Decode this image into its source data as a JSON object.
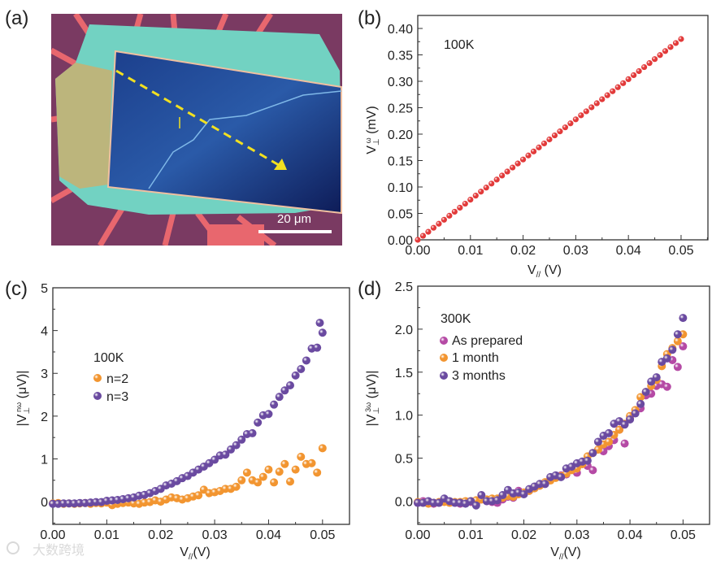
{
  "panel_labels": {
    "a": "(a)",
    "b": "(b)",
    "c": "(c)",
    "d": "(d)"
  },
  "image": {
    "scale_bar": "20 μm"
  },
  "watermark": "大数跨境",
  "colors": {
    "red": "#e23a3a",
    "orange": "#f29530",
    "purple": "#6a4aa0",
    "magenta": "#b54aa5"
  },
  "chart_data": [
    {
      "id": "b",
      "type": "scatter",
      "annotation": "100K",
      "xlabel": {
        "main": "V",
        "sub": "//",
        "unit": " (V)"
      },
      "ylabel": {
        "main": "V",
        "sub": "⊥",
        "sup": "ω",
        "unit": " (mV)"
      },
      "xlim": [
        0,
        0.0551
      ],
      "ylim": [
        0,
        0.4246
      ],
      "xticks": [
        "0.00",
        "0.01",
        "0.02",
        "0.03",
        "0.04",
        "0.05"
      ],
      "yticks": [
        "0.00",
        "0.05",
        "0.10",
        "0.15",
        "0.20",
        "0.25",
        "0.30",
        "0.35",
        "0.40"
      ],
      "xtick_step": 0.01,
      "ytick_step": 0.05,
      "series": [
        {
          "name": "100K",
          "color": "#e23a3a",
          "x": [
            0,
            0.001,
            0.002,
            0.003,
            0.004,
            0.005,
            0.006,
            0.007,
            0.008,
            0.009,
            0.01,
            0.011,
            0.012,
            0.013,
            0.014,
            0.015,
            0.016,
            0.017,
            0.018,
            0.019,
            0.02,
            0.021,
            0.022,
            0.023,
            0.024,
            0.025,
            0.026,
            0.027,
            0.028,
            0.029,
            0.03,
            0.031,
            0.032,
            0.033,
            0.034,
            0.035,
            0.036,
            0.037,
            0.038,
            0.039,
            0.04,
            0.041,
            0.042,
            0.043,
            0.044,
            0.045,
            0.046,
            0.047,
            0.048,
            0.049,
            0.05
          ],
          "y": [
            0,
            0.0076,
            0.0152,
            0.0228,
            0.0304,
            0.038,
            0.0456,
            0.0532,
            0.0608,
            0.0684,
            0.076,
            0.0836,
            0.0912,
            0.0988,
            0.1064,
            0.114,
            0.1216,
            0.1292,
            0.1368,
            0.1444,
            0.152,
            0.1596,
            0.1672,
            0.1748,
            0.1824,
            0.19,
            0.1976,
            0.2052,
            0.2128,
            0.2204,
            0.228,
            0.2356,
            0.2432,
            0.2508,
            0.2584,
            0.266,
            0.2736,
            0.2812,
            0.2888,
            0.2964,
            0.304,
            0.3116,
            0.3192,
            0.3268,
            0.3344,
            0.342,
            0.3496,
            0.3572,
            0.3648,
            0.3724,
            0.38
          ]
        }
      ]
    },
    {
      "id": "c",
      "type": "scatter",
      "legend_title": "100K",
      "legend_position": "middle-left",
      "xlabel": {
        "main": "V",
        "sub": "//",
        "unit": "(V)"
      },
      "ylabel": {
        "pre": "|V",
        "sub": "⊥",
        "sup": "nω",
        "unit": " (μV)|"
      },
      "xlim": [
        0,
        0.055
      ],
      "ylim": [
        -0.53,
        5
      ],
      "xticks": [
        "0.00",
        "0.01",
        "0.02",
        "0.03",
        "0.04",
        "0.05"
      ],
      "yticks": [
        "0",
        "1",
        "2",
        "3",
        "4",
        "5"
      ],
      "xtick_step": 0.01,
      "ytick_step": 1,
      "series": [
        {
          "name": "n=2",
          "color": "#f29530",
          "x": [
            0,
            0.001,
            0.002,
            0.003,
            0.004,
            0.005,
            0.006,
            0.007,
            0.008,
            0.009,
            0.01,
            0.011,
            0.012,
            0.013,
            0.014,
            0.015,
            0.016,
            0.017,
            0.018,
            0.019,
            0.02,
            0.021,
            0.022,
            0.023,
            0.024,
            0.025,
            0.026,
            0.027,
            0.028,
            0.029,
            0.03,
            0.031,
            0.032,
            0.033,
            0.034,
            0.035,
            0.036,
            0.037,
            0.038,
            0.039,
            0.04,
            0.041,
            0.042,
            0.043,
            0.044,
            0.045,
            0.046,
            0.047,
            0.048,
            0.049,
            0.05
          ],
          "y": [
            -0.04,
            -0.03,
            -0.05,
            -0.04,
            -0.05,
            -0.04,
            -0.03,
            -0.05,
            -0.03,
            -0.04,
            -0.02,
            -0.08,
            -0.05,
            -0.03,
            -0.02,
            -0.04,
            -0.05,
            -0.02,
            -0.01,
            0.03,
            0.0,
            0.05,
            0.1,
            0.08,
            0.05,
            0.08,
            0.12,
            0.15,
            0.28,
            0.2,
            0.22,
            0.25,
            0.3,
            0.3,
            0.35,
            0.5,
            0.68,
            0.5,
            0.45,
            0.58,
            0.75,
            0.45,
            0.7,
            0.88,
            0.47,
            0.75,
            1.05,
            0.88,
            0.9,
            0.68,
            1.25
          ]
        },
        {
          "name": "n=3",
          "color": "#6a4aa0",
          "x": [
            0,
            0.001,
            0.002,
            0.003,
            0.004,
            0.005,
            0.006,
            0.007,
            0.008,
            0.009,
            0.01,
            0.011,
            0.012,
            0.013,
            0.014,
            0.015,
            0.016,
            0.017,
            0.018,
            0.019,
            0.02,
            0.021,
            0.022,
            0.023,
            0.024,
            0.025,
            0.026,
            0.027,
            0.028,
            0.029,
            0.03,
            0.031,
            0.032,
            0.033,
            0.034,
            0.035,
            0.036,
            0.037,
            0.038,
            0.039,
            0.04,
            0.041,
            0.042,
            0.043,
            0.044,
            0.045,
            0.046,
            0.047,
            0.048,
            0.049,
            0.0495,
            0.05
          ],
          "y": [
            -0.05,
            -0.05,
            -0.04,
            -0.04,
            -0.04,
            -0.03,
            -0.03,
            -0.02,
            -0.01,
            -0.01,
            0.02,
            0.03,
            0.04,
            0.06,
            0.08,
            0.1,
            0.14,
            0.16,
            0.2,
            0.25,
            0.3,
            0.38,
            0.42,
            0.48,
            0.55,
            0.6,
            0.68,
            0.75,
            0.82,
            0.9,
            0.98,
            1.08,
            1.1,
            1.22,
            1.32,
            1.45,
            1.58,
            1.6,
            1.85,
            2.02,
            2.05,
            2.27,
            2.45,
            2.6,
            2.72,
            2.95,
            3.1,
            3.3,
            3.58,
            3.6,
            4.18,
            3.95
          ]
        }
      ]
    },
    {
      "id": "d",
      "type": "scatter",
      "legend_title": "300K",
      "legend_position": "top-left",
      "xlabel": {
        "main": "V",
        "sub": "//",
        "unit": "(V)"
      },
      "ylabel": {
        "pre": "|V",
        "sub": "⊥",
        "sup": "3ω",
        "unit": " (μV)|"
      },
      "xlim": [
        0,
        0.055
      ],
      "ylim": [
        -0.27,
        2.5
      ],
      "xticks": [
        "0.00",
        "0.01",
        "0.02",
        "0.03",
        "0.04",
        "0.05"
      ],
      "yticks": [
        "0.0",
        "0.5",
        "1.0",
        "1.5",
        "2.0",
        "2.5"
      ],
      "xtick_step": 0.01,
      "ytick_step": 0.5,
      "series": [
        {
          "name": "As prepared",
          "color": "#b54aa5",
          "x": [
            0,
            0.001,
            0.002,
            0.003,
            0.004,
            0.005,
            0.006,
            0.007,
            0.008,
            0.009,
            0.01,
            0.011,
            0.012,
            0.013,
            0.014,
            0.015,
            0.016,
            0.017,
            0.018,
            0.019,
            0.02,
            0.021,
            0.022,
            0.023,
            0.024,
            0.025,
            0.026,
            0.027,
            0.028,
            0.029,
            0.03,
            0.031,
            0.032,
            0.033,
            0.034,
            0.035,
            0.036,
            0.037,
            0.038,
            0.039,
            0.04,
            0.041,
            0.042,
            0.043,
            0.044,
            0.045,
            0.046,
            0.047,
            0.048,
            0.049,
            0.05
          ],
          "y": [
            -0.02,
            0.0,
            -0.02,
            -0.03,
            -0.02,
            0.0,
            -0.01,
            -0.02,
            -0.03,
            -0.02,
            -0.01,
            -0.03,
            0.02,
            0.0,
            -0.01,
            -0.02,
            0.02,
            0.05,
            0.04,
            0.12,
            0.1,
            0.12,
            0.15,
            0.18,
            0.2,
            0.25,
            0.28,
            0.3,
            0.31,
            0.38,
            0.33,
            0.45,
            0.41,
            0.36,
            0.6,
            0.58,
            0.64,
            0.71,
            0.83,
            0.67,
            0.96,
            1.03,
            1.08,
            1.23,
            1.25,
            1.34,
            1.36,
            1.33,
            1.64,
            1.56,
            1.8
          ]
        },
        {
          "name": "1 month",
          "color": "#f29530",
          "x": [
            0,
            0.001,
            0.002,
            0.003,
            0.004,
            0.005,
            0.006,
            0.007,
            0.008,
            0.009,
            0.01,
            0.011,
            0.012,
            0.013,
            0.014,
            0.015,
            0.016,
            0.017,
            0.018,
            0.019,
            0.02,
            0.021,
            0.022,
            0.023,
            0.024,
            0.025,
            0.026,
            0.027,
            0.028,
            0.029,
            0.03,
            0.031,
            0.032,
            0.033,
            0.034,
            0.035,
            0.036,
            0.037,
            0.038,
            0.039,
            0.04,
            0.041,
            0.042,
            0.043,
            0.044,
            0.045,
            0.046,
            0.047,
            0.048,
            0.049,
            0.05
          ],
          "y": [
            -0.01,
            -0.02,
            -0.03,
            -0.02,
            -0.01,
            -0.01,
            -0.02,
            -0.01,
            -0.01,
            0.0,
            0.0,
            0.01,
            0.02,
            0.02,
            0.03,
            0.03,
            0.04,
            0.06,
            0.05,
            0.08,
            0.1,
            0.12,
            0.15,
            0.18,
            0.22,
            0.24,
            0.27,
            0.29,
            0.32,
            0.36,
            0.38,
            0.43,
            0.52,
            0.56,
            0.6,
            0.66,
            0.69,
            0.77,
            0.83,
            0.9,
            0.99,
            1.06,
            1.21,
            1.27,
            1.34,
            1.41,
            1.57,
            1.71,
            1.78,
            1.86,
            1.94
          ]
        },
        {
          "name": "3 months",
          "color": "#6a4aa0",
          "x": [
            0,
            0.001,
            0.002,
            0.003,
            0.004,
            0.005,
            0.006,
            0.007,
            0.008,
            0.009,
            0.01,
            0.011,
            0.012,
            0.013,
            0.014,
            0.015,
            0.016,
            0.017,
            0.018,
            0.019,
            0.02,
            0.021,
            0.022,
            0.023,
            0.024,
            0.025,
            0.026,
            0.027,
            0.028,
            0.029,
            0.03,
            0.031,
            0.032,
            0.033,
            0.034,
            0.035,
            0.036,
            0.037,
            0.038,
            0.039,
            0.04,
            0.041,
            0.042,
            0.043,
            0.044,
            0.045,
            0.046,
            0.047,
            0.048,
            0.049,
            0.05
          ],
          "y": [
            -0.02,
            -0.02,
            0.0,
            -0.02,
            -0.02,
            0.03,
            0.0,
            -0.02,
            -0.02,
            -0.03,
            0.0,
            -0.05,
            0.07,
            0.0,
            0.0,
            0.01,
            0.07,
            0.13,
            0.09,
            0.1,
            0.08,
            0.14,
            0.17,
            0.2,
            0.2,
            0.28,
            0.3,
            0.28,
            0.38,
            0.4,
            0.44,
            0.46,
            0.47,
            0.56,
            0.69,
            0.76,
            0.79,
            0.9,
            0.93,
            0.89,
            0.95,
            1.02,
            1.13,
            1.27,
            1.39,
            1.44,
            1.62,
            1.66,
            1.76,
            1.94,
            2.13
          ]
        }
      ]
    }
  ]
}
